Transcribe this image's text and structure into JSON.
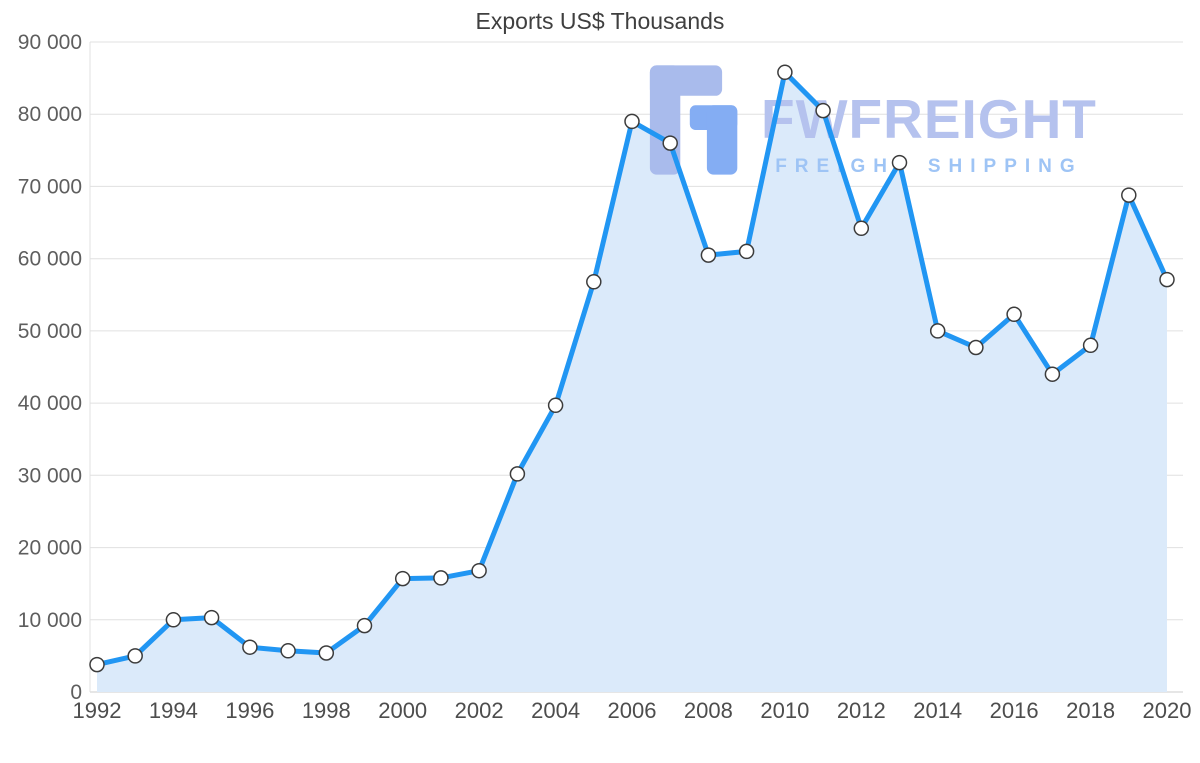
{
  "title": "Exports US$ Thousands",
  "watermark": {
    "brand": "FWFREIGHT",
    "tagline": "FREIGHT SHIPPING"
  },
  "colors": {
    "line": "#2196f3",
    "area": "#dbeafa",
    "marker_fill": "#ffffff",
    "marker_stroke": "#3c3c3c",
    "grid": "#e0e0e0",
    "axis_line": "#cccccc",
    "y_axis_text": "#5e5e5e",
    "x_axis_text": "#4d4d4d",
    "title_text": "#3f3f3f",
    "logo_primary": "#a9bbec",
    "logo_secondary": "#84adf3"
  },
  "chart_data": {
    "type": "area",
    "title": "Exports US$ Thousands",
    "x": [
      1992,
      1993,
      1994,
      1995,
      1996,
      1997,
      1998,
      1999,
      2000,
      2001,
      2002,
      2003,
      2004,
      2005,
      2006,
      2007,
      2008,
      2009,
      2010,
      2011,
      2012,
      2013,
      2014,
      2015,
      2016,
      2017,
      2018,
      2019,
      2020
    ],
    "values": [
      3800,
      5000,
      10000,
      10300,
      6200,
      5700,
      5400,
      9200,
      15700,
      15800,
      16800,
      30200,
      39700,
      56800,
      79000,
      76000,
      60500,
      61000,
      85800,
      80500,
      64200,
      73300,
      50000,
      47700,
      52300,
      44000,
      48000,
      68800,
      57100
    ],
    "xticks": [
      1992,
      1994,
      1996,
      1998,
      2000,
      2002,
      2004,
      2006,
      2008,
      2010,
      2012,
      2014,
      2016,
      2018,
      2020
    ],
    "yticks": [
      0,
      10000,
      20000,
      30000,
      40000,
      50000,
      60000,
      70000,
      80000,
      90000
    ],
    "ytick_labels": [
      "0",
      "10 000",
      "20 000",
      "30 000",
      "40 000",
      "50 000",
      "60 000",
      "70 000",
      "80 000",
      "90 000"
    ],
    "xlabel": "",
    "ylabel": "",
    "ylim": [
      0,
      90000
    ],
    "grid": "horizontal",
    "legend": "none",
    "series_name": "Exports US$ Thousands"
  }
}
